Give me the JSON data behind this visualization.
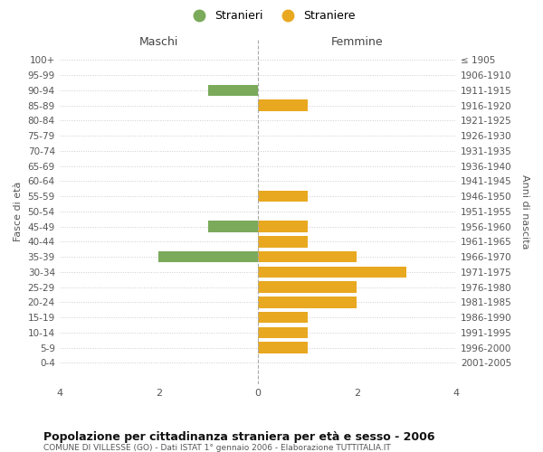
{
  "age_groups": [
    "100+",
    "95-99",
    "90-94",
    "85-89",
    "80-84",
    "75-79",
    "70-74",
    "65-69",
    "60-64",
    "55-59",
    "50-54",
    "45-49",
    "40-44",
    "35-39",
    "30-34",
    "25-29",
    "20-24",
    "15-19",
    "10-14",
    "5-9",
    "0-4"
  ],
  "birth_years": [
    "≤ 1905",
    "1906-1910",
    "1911-1915",
    "1916-1920",
    "1921-1925",
    "1926-1930",
    "1931-1935",
    "1936-1940",
    "1941-1945",
    "1946-1950",
    "1951-1955",
    "1956-1960",
    "1961-1965",
    "1966-1970",
    "1971-1975",
    "1976-1980",
    "1981-1985",
    "1986-1990",
    "1991-1995",
    "1996-2000",
    "2001-2005"
  ],
  "maschi": [
    0,
    0,
    1,
    0,
    0,
    0,
    0,
    0,
    0,
    0,
    0,
    1,
    0,
    2,
    0,
    0,
    0,
    0,
    0,
    0,
    0
  ],
  "femmine": [
    0,
    0,
    0,
    1,
    0,
    0,
    0,
    0,
    0,
    1,
    0,
    1,
    1,
    2,
    3,
    2,
    2,
    1,
    1,
    1,
    0
  ],
  "maschi_color": "#7aaa5a",
  "femmine_color": "#e8a820",
  "title": "Popolazione per cittadinanza straniera per età e sesso - 2006",
  "subtitle": "COMUNE DI VILLESSE (GO) - Dati ISTAT 1° gennaio 2006 - Elaborazione TUTTITALIA.IT",
  "xlabel_left": "Maschi",
  "xlabel_right": "Femmine",
  "ylabel_left": "Fasce di età",
  "ylabel_right": "Anni di nascita",
  "legend_maschi": "Stranieri",
  "legend_femmine": "Straniere",
  "xlim": 4,
  "background_color": "#ffffff",
  "grid_color": "#cccccc",
  "bar_height": 0.75
}
